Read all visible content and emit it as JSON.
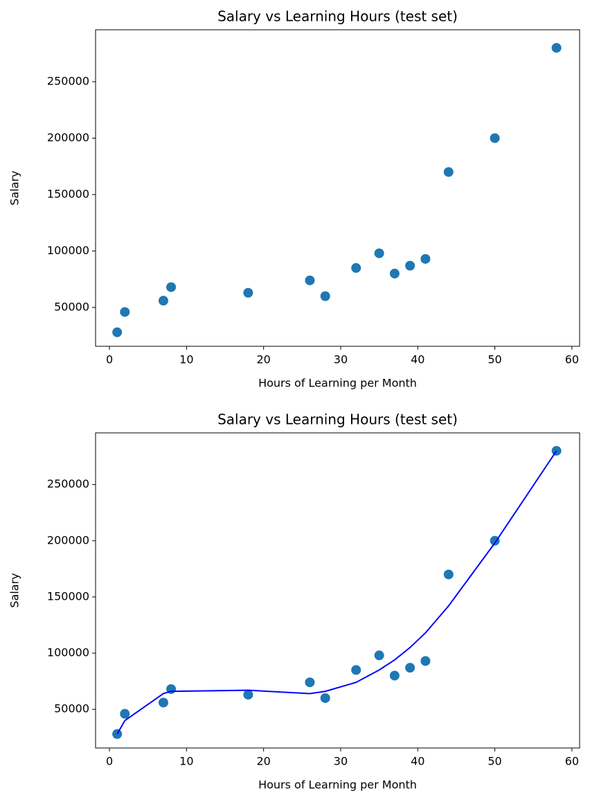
{
  "chart_data": [
    {
      "type": "scatter",
      "title": "Salary vs Learning Hours (test set)",
      "xlabel": "Hours of Learning per Month",
      "ylabel": "Salary",
      "xlim": [
        -1.8,
        61
      ],
      "ylim": [
        15600,
        296000
      ],
      "xticks": [
        0,
        10,
        20,
        30,
        40,
        50,
        60
      ],
      "yticks": [
        50000,
        100000,
        150000,
        200000,
        250000
      ],
      "series": [
        {
          "type": "scatter",
          "color": "#1f77b4",
          "x": [
            1,
            2,
            7,
            8,
            18,
            26,
            28,
            32,
            35,
            37,
            39,
            41,
            44,
            50,
            58
          ],
          "values": [
            28000,
            46000,
            56000,
            68000,
            63000,
            74000,
            60000,
            85000,
            98000,
            80000,
            87000,
            93000,
            170000,
            200000,
            280000
          ]
        }
      ]
    },
    {
      "type": "scatter",
      "title": "Salary vs Learning Hours (test set)",
      "xlabel": "Hours of Learning per Month",
      "ylabel": "Salary",
      "xlim": [
        -1.8,
        61
      ],
      "ylim": [
        15600,
        296000
      ],
      "xticks": [
        0,
        10,
        20,
        30,
        40,
        50,
        60
      ],
      "yticks": [
        50000,
        100000,
        150000,
        200000,
        250000
      ],
      "series": [
        {
          "type": "scatter",
          "color": "#1f77b4",
          "x": [
            1,
            2,
            7,
            8,
            18,
            26,
            28,
            32,
            35,
            37,
            39,
            41,
            44,
            50,
            58
          ],
          "values": [
            28000,
            46000,
            56000,
            68000,
            63000,
            74000,
            60000,
            85000,
            98000,
            80000,
            87000,
            93000,
            170000,
            200000,
            280000
          ]
        },
        {
          "type": "line",
          "color": "#0000ff",
          "x": [
            1,
            2,
            7,
            8,
            18,
            26,
            28,
            32,
            35,
            37,
            39,
            41,
            44,
            50,
            58
          ],
          "values": [
            28000,
            40000,
            64000,
            66000,
            67000,
            64000,
            66000,
            74000,
            85000,
            94000,
            105000,
            118000,
            142000,
            198000,
            280000
          ]
        }
      ]
    }
  ]
}
